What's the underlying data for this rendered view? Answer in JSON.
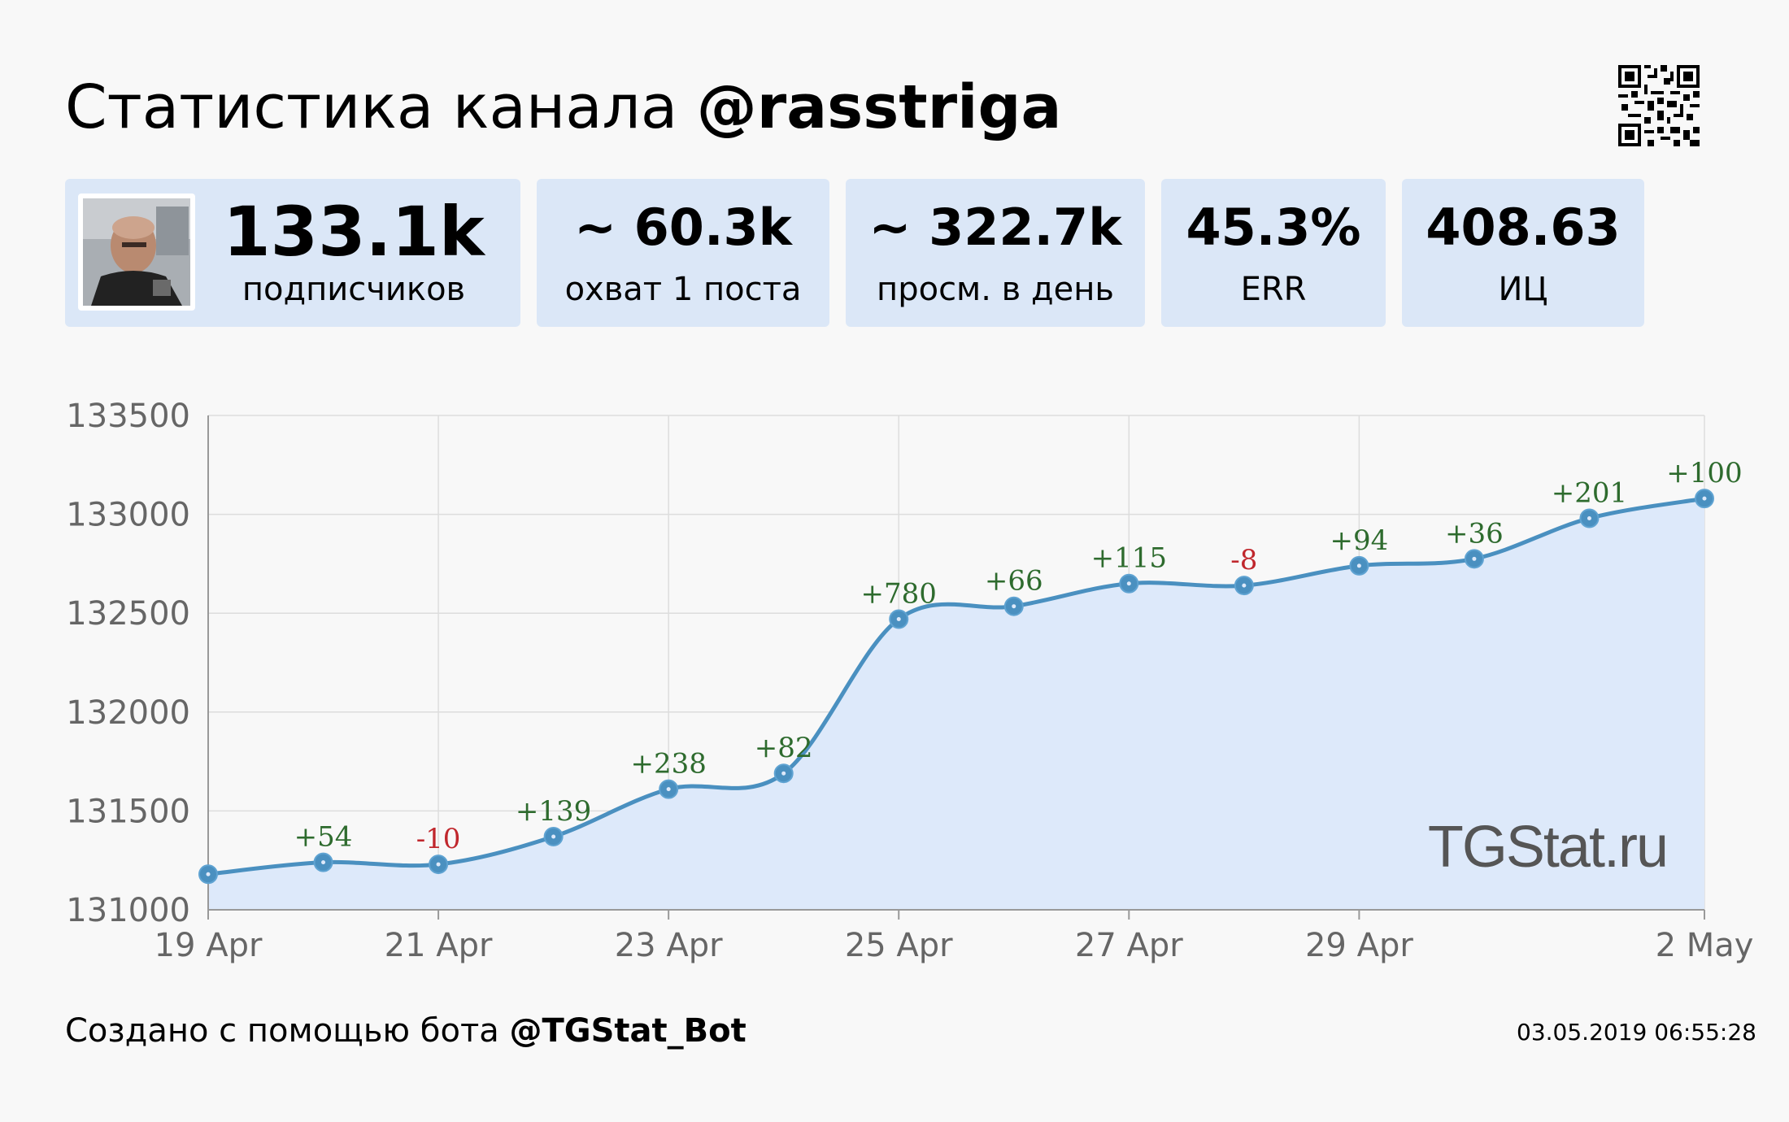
{
  "header": {
    "title_prefix": "Статистика канала",
    "channel": "@rasstriga"
  },
  "stats": [
    {
      "value": "133.1k",
      "label": "подписчиков"
    },
    {
      "value": "~ 60.3k",
      "label": "охват 1 поста"
    },
    {
      "value": "~ 322.7k",
      "label": "просм. в день"
    },
    {
      "value": "45.3%",
      "label": "ERR"
    },
    {
      "value": "408.63",
      "label": "ИЦ"
    }
  ],
  "chart_data": {
    "type": "line",
    "x": [
      "19 Apr",
      "20 Apr",
      "21 Apr",
      "22 Apr",
      "23 Apr",
      "24 Apr",
      "25 Apr",
      "26 Apr",
      "27 Apr",
      "28 Apr",
      "29 Apr",
      "30 Apr",
      "1 May",
      "2 May"
    ],
    "x_tick_labels": [
      "19 Apr",
      "21 Apr",
      "23 Apr",
      "25 Apr",
      "27 Apr",
      "29 Apr",
      "2 May"
    ],
    "y": [
      131180,
      131240,
      131230,
      131370,
      131610,
      131690,
      132470,
      132535,
      132650,
      132640,
      132740,
      132775,
      132980,
      133080
    ],
    "deltas": [
      "",
      "+54",
      "-10",
      "+139",
      "+238",
      "+82",
      "+780",
      "+66",
      "+115",
      "-8",
      "+94",
      "+36",
      "+201",
      "+100"
    ],
    "ylim": [
      131000,
      133500
    ],
    "y_ticks": [
      131000,
      131500,
      132000,
      132500,
      133000,
      133500
    ],
    "grid": true,
    "line_color": "#4a90c0",
    "fill_color": "#dde9fa",
    "positive_color": "#2e6b2e",
    "negative_color": "#c0272d",
    "watermark": "TGStat.ru"
  },
  "footer": {
    "prefix": "Создано с помощью бота",
    "bot": "@TGStat_Bot",
    "timestamp": "03.05.2019 06:55:28"
  }
}
